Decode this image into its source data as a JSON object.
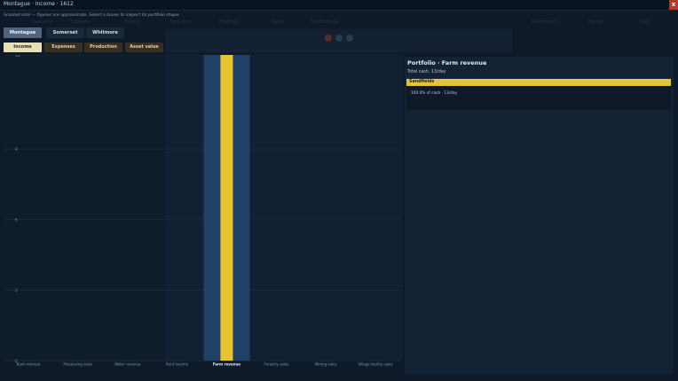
{
  "window": {
    "title": "Montague · Income · 1612",
    "close_label": "x"
  },
  "notice": "Scouted intel — figures are approximate. Select a house to inspect its portfolio shape.",
  "background_nav": [
    "Overview",
    "Calendar",
    "Trading",
    "Tech tree",
    "Holdings",
    "Rivals",
    "Notifications",
    "Commission",
    "Market",
    "Cash"
  ],
  "houses": {
    "active": "Montague",
    "items": [
      "Montague",
      "Somerset",
      "Whitmore"
    ]
  },
  "views": {
    "active": "Income",
    "items": [
      "Income",
      "Expenses",
      "Production",
      "Asset value"
    ]
  },
  "chart_data": {
    "type": "bar",
    "categories": [
      "Bank interest",
      "Processing sales",
      "Water revenue",
      "Rent income",
      "Farm revenue",
      "Forestry sales",
      "Mining sales",
      "Village facility sales"
    ],
    "values": [
      0,
      0,
      0,
      0,
      13,
      0,
      0,
      0
    ],
    "highlighted_category": "Farm revenue",
    "ylim": [
      0,
      13
    ],
    "yticks": [
      0,
      3,
      6,
      9,
      13
    ],
    "grid": true,
    "colors": {
      "bar": "#e8c52f",
      "highlight_band": "#1f4266",
      "grid": "#1c2d40",
      "axis_text": "#8094aa"
    }
  },
  "portfolio": {
    "title": "Portfolio · Farm revenue",
    "total": "Total cash: 13/day",
    "items": [
      {
        "name": "Sandfields",
        "detail": "100.0% of cash · 13/day"
      }
    ]
  },
  "colors": {
    "accent_yellow": "#e5c436",
    "close_red": "#b23b2e",
    "background": "#0e1a29"
  }
}
